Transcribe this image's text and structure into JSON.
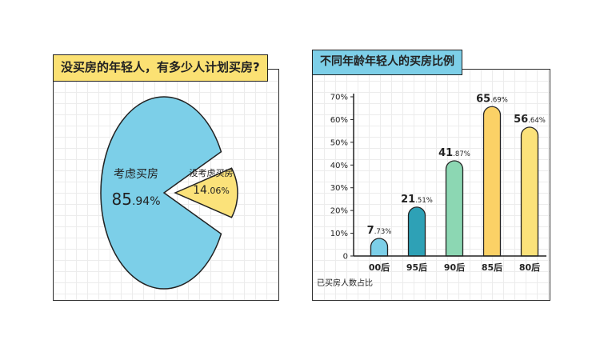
{
  "left_panel": {
    "title": "没买房的年轻人，有多少人计划买房?"
  },
  "right_panel": {
    "title": "不同年龄年轻人的买房比例"
  },
  "colors": {
    "pie_large": "#7ccfe8",
    "pie_small": "#fbe27a",
    "bars": [
      "#7ccfe8",
      "#2ea1b6",
      "#8cd7b3",
      "#fbd166",
      "#fbe27a"
    ],
    "title_left_bg": "#fbe173",
    "title_right_bg": "#7dcfe8"
  },
  "chart_data": [
    {
      "type": "pie",
      "title": "没买房的年轻人，有多少人计划买房?",
      "slices": [
        {
          "label": "考虑买房",
          "value_int": "85",
          "value_dec": ".94%",
          "value": 85.94
        },
        {
          "label": "没考虑买房",
          "value_int": "14",
          "value_dec": ".06%",
          "value": 14.06
        }
      ]
    },
    {
      "type": "bar",
      "title": "不同年龄年轻人的买房比例",
      "categories": [
        "00后",
        "95后",
        "90后",
        "85后",
        "80后"
      ],
      "values": [
        7.73,
        21.51,
        41.87,
        65.69,
        56.64
      ],
      "value_labels": [
        {
          "int": "7",
          "dec": ".73%"
        },
        {
          "int": "21",
          "dec": ".51%"
        },
        {
          "int": "41",
          "dec": ".87%"
        },
        {
          "int": "65",
          "dec": ".69%"
        },
        {
          "int": "56",
          "dec": ".64%"
        }
      ],
      "ylim": [
        0,
        70
      ],
      "y_ticks": [
        "0",
        "10%",
        "20%",
        "30%",
        "40%",
        "50%",
        "60%",
        "70%"
      ],
      "legend_note": "已买房人数占比"
    }
  ]
}
